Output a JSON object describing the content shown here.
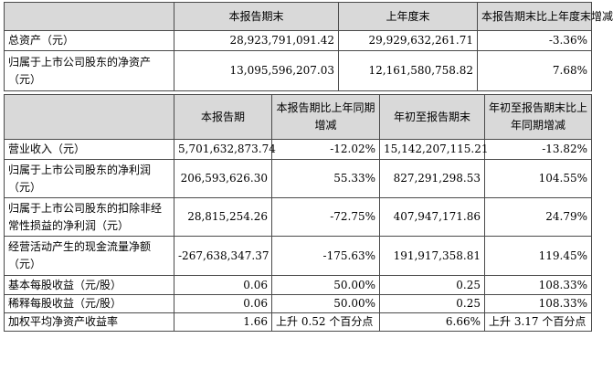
{
  "table1": {
    "headers": [
      "",
      "本报告期末",
      "上年度末",
      "本报告期末比上年度末增减"
    ],
    "rows": [
      {
        "label": "总资产（元）",
        "current": "28,923,791,091.42",
        "prior": "29,929,632,261.71",
        "change": "-3.36%"
      },
      {
        "label": "归属于上市公司股东的净资产（元）",
        "current": "13,095,596,207.03",
        "prior": "12,161,580,758.82",
        "change": "7.68%"
      }
    ]
  },
  "table2": {
    "headers": [
      "",
      "本报告期",
      "本报告期比上年同期增减",
      "年初至报告期末",
      "年初至报告期末比上年同期增减"
    ],
    "rows": [
      {
        "label": "营业收入（元）",
        "period": "5,701,632,873.74",
        "period_change": "-12.02%",
        "ytd": "15,142,207,115.21",
        "ytd_change": "-13.82%"
      },
      {
        "label": "归属于上市公司股东的净利润（元）",
        "period": "206,593,626.30",
        "period_change": "55.33%",
        "ytd": "827,291,298.53",
        "ytd_change": "104.55%"
      },
      {
        "label": "归属于上市公司股东的扣除非经常性损益的净利润（元）",
        "period": "28,815,254.26",
        "period_change": "-72.75%",
        "ytd": "407,947,171.86",
        "ytd_change": "24.79%"
      },
      {
        "label": "经营活动产生的现金流量净额（元）",
        "period": "-267,638,347.37",
        "period_change": "-175.63%",
        "ytd": "191,917,358.81",
        "ytd_change": "119.45%"
      },
      {
        "label": "基本每股收益（元/股）",
        "period": "0.06",
        "period_change": "50.00%",
        "ytd": "0.25",
        "ytd_change": "108.33%"
      },
      {
        "label": "稀释每股收益（元/股）",
        "period": "0.06",
        "period_change": "50.00%",
        "ytd": "0.25",
        "ytd_change": "108.33%"
      },
      {
        "label": "加权平均净资产收益率",
        "period": "1.66",
        "period_change": "上升 0.52 个百分点",
        "ytd": "6.66%",
        "ytd_change": "上升 3.17 个百分点"
      }
    ]
  }
}
